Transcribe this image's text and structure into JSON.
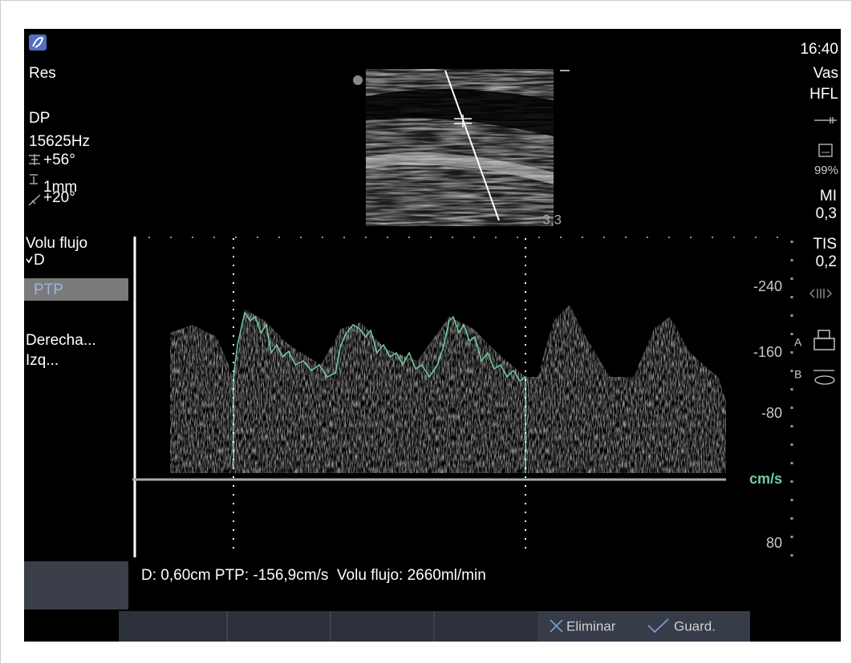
{
  "left_panel": {
    "preset": "Res",
    "mode": "DP",
    "prf": "15625Hz",
    "angle": "+56°",
    "gate": "1mm",
    "steer": "+20°"
  },
  "menu": {
    "title": "Volu flujo",
    "items": [
      "D",
      "PTP",
      "Derecha...",
      "Izq..."
    ]
  },
  "right_panel": {
    "time": "16:40",
    "app": "Vas",
    "probe": "HFL",
    "storage": "99%",
    "mi_label": "MI",
    "mi_value": "0,3",
    "tis_label": "TIS",
    "tis_value": "0,2",
    "printer": "A",
    "dvd": "B"
  },
  "image": {
    "depth": "3,3"
  },
  "doppler_scale": {
    "labels": [
      "-240",
      "-160",
      "-80",
      "80"
    ],
    "unit": "cm/s"
  },
  "measurement": "D: 0,60cm PTP: -156,9cm/s  Volu flujo: 2660ml/min",
  "softkeys": [
    "Eliminar",
    "Guard."
  ]
}
